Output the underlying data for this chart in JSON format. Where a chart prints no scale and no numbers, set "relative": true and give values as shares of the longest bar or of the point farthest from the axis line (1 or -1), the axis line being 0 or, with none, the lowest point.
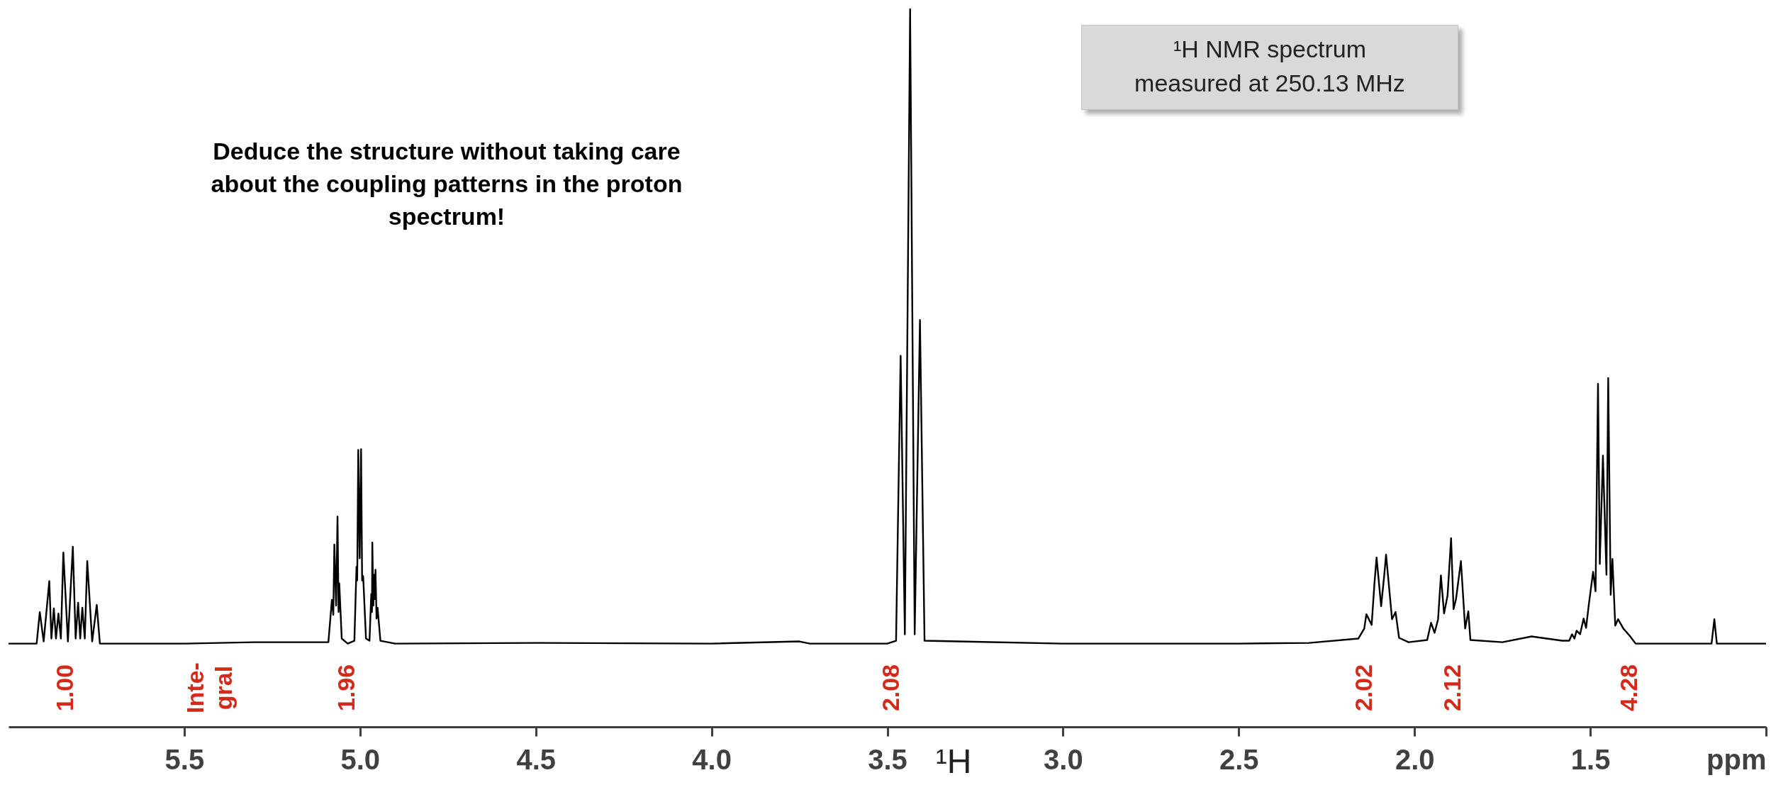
{
  "chart_data": {
    "type": "line",
    "relative": true,
    "x": [
      6.0,
      5.92,
      5.911,
      5.9,
      5.884,
      5.878,
      5.871,
      5.865,
      5.858,
      5.851,
      5.844,
      5.831,
      5.817,
      5.809,
      5.802,
      5.796,
      5.79,
      5.783,
      5.776,
      5.762,
      5.749,
      5.74,
      5.5,
      5.3,
      5.09,
      5.08,
      5.076,
      5.073,
      5.068,
      5.064,
      5.061,
      5.059,
      5.052,
      5.035,
      5.016,
      5.01,
      5.008,
      5.005,
      5.001,
      4.997,
      4.994,
      4.991,
      4.983,
      4.973,
      4.968,
      4.966,
      4.965,
      4.962,
      4.96,
      4.958,
      4.956,
      4.953,
      4.95,
      4.942,
      4.9,
      4.5,
      4.0,
      3.75,
      3.72,
      3.5,
      3.475,
      3.462,
      3.45,
      3.435,
      3.422,
      3.407,
      3.394,
      3.3,
      3.0,
      2.5,
      2.3,
      2.16,
      2.143,
      2.137,
      2.122,
      2.114,
      2.108,
      2.095,
      2.086,
      2.081,
      2.064,
      2.054,
      2.044,
      2.017,
      1.964,
      1.953,
      1.943,
      1.933,
      1.925,
      1.916,
      1.906,
      1.896,
      1.889,
      1.882,
      1.868,
      1.856,
      1.847,
      1.841,
      1.75,
      1.667,
      1.58,
      1.56,
      1.552,
      1.545,
      1.539,
      1.529,
      1.519,
      1.512,
      1.504,
      1.492,
      1.485,
      1.478,
      1.473,
      1.464,
      1.454,
      1.449,
      1.442,
      1.437,
      1.429,
      1.421,
      1.406,
      1.388,
      1.371,
      1.2,
      1.155,
      1.147,
      1.14,
      1.0
    ],
    "series": [
      {
        "color": "#000000",
        "values": [
          0.116,
          0.116,
          0.16,
          0.119,
          0.203,
          0.123,
          0.165,
          0.123,
          0.158,
          0.123,
          0.243,
          0.119,
          0.251,
          0.123,
          0.173,
          0.123,
          0.166,
          0.123,
          0.231,
          0.119,
          0.17,
          0.116,
          0.116,
          0.118,
          0.118,
          0.177,
          0.156,
          0.254,
          0.169,
          0.293,
          0.16,
          0.2,
          0.123,
          0.116,
          0.12,
          0.223,
          0.204,
          0.386,
          0.235,
          0.387,
          0.204,
          0.21,
          0.123,
          0.12,
          0.185,
          0.16,
          0.257,
          0.169,
          0.212,
          0.178,
          0.219,
          0.151,
          0.166,
          0.12,
          0.116,
          0.117,
          0.116,
          0.119,
          0.116,
          0.116,
          0.12,
          0.517,
          0.129,
          1.0,
          0.129,
          0.567,
          0.12,
          0.119,
          0.116,
          0.116,
          0.117,
          0.123,
          0.137,
          0.157,
          0.142,
          0.2,
          0.236,
          0.168,
          0.212,
          0.24,
          0.15,
          0.16,
          0.124,
          0.118,
          0.121,
          0.145,
          0.131,
          0.15,
          0.211,
          0.158,
          0.183,
          0.263,
          0.164,
          0.178,
          0.231,
          0.137,
          0.161,
          0.121,
          0.118,
          0.126,
          0.12,
          0.12,
          0.129,
          0.123,
          0.134,
          0.129,
          0.151,
          0.138,
          0.171,
          0.216,
          0.189,
          0.478,
          0.227,
          0.378,
          0.212,
          0.486,
          0.184,
          0.234,
          0.141,
          0.15,
          0.137,
          0.127,
          0.116,
          0.116,
          0.116,
          0.15,
          0.116,
          0.116
        ]
      }
    ],
    "xlim": [
      6.0,
      1.0
    ],
    "xticks": [
      {
        "value": 5.5,
        "label": "5.5"
      },
      {
        "value": 5.0,
        "label": "5.0"
      },
      {
        "value": 4.5,
        "label": "4.5"
      },
      {
        "value": 4.0,
        "label": "4.0"
      },
      {
        "value": 3.5,
        "label": "3.5"
      },
      {
        "value": 3.0,
        "label": "3.0"
      },
      {
        "value": 2.5,
        "label": "2.5"
      },
      {
        "value": 2.0,
        "label": "2.0"
      },
      {
        "value": 1.5,
        "label": "1.5"
      },
      {
        "value": 1.0,
        "label": "ppm"
      }
    ],
    "annotations": [
      "Deduce the structure without taking care\nabout the coupling patterns in the proton\nspectrum!",
      "¹H NMR spectrum\nmeasured at 250.13 MHz",
      "¹H",
      "Inte-\ngral",
      "1.00",
      "1.96",
      "2.08",
      "2.02",
      "2.12",
      "4.28"
    ]
  }
}
